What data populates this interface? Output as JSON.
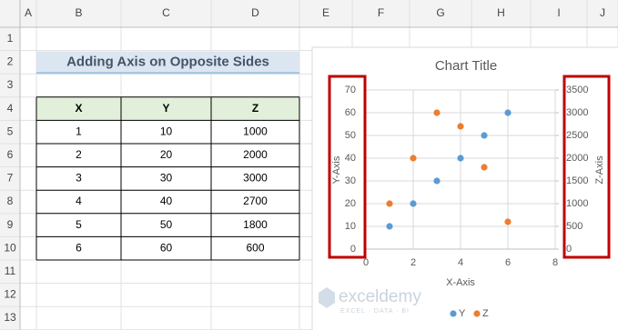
{
  "spreadsheet": {
    "columns": [
      "A",
      "B",
      "C",
      "D",
      "E",
      "F",
      "G",
      "H",
      "I",
      "J"
    ],
    "rows": [
      1,
      2,
      3,
      4,
      5,
      6,
      7,
      8,
      9,
      10,
      11,
      12,
      13
    ],
    "title": "Adding Axis on Opposite Sides",
    "table": {
      "header": [
        "X",
        "Y",
        "Z"
      ],
      "rows": [
        [
          1,
          10,
          1000
        ],
        [
          2,
          20,
          2000
        ],
        [
          3,
          30,
          3000
        ],
        [
          4,
          40,
          2700
        ],
        [
          5,
          50,
          1800
        ],
        [
          6,
          60,
          600
        ]
      ]
    }
  },
  "chart_data": {
    "type": "scatter",
    "title": "Chart Title",
    "x_label": "X-Axis",
    "y_label": "Y-Axis",
    "y2_label": "Z-Axis",
    "x": [
      1,
      2,
      3,
      4,
      5,
      6
    ],
    "series": [
      {
        "name": "Y",
        "color": "#5b9bd5",
        "values": [
          10,
          20,
          30,
          40,
          50,
          60
        ]
      },
      {
        "name": "Z",
        "color": "#ed7d31",
        "values": [
          1000,
          2000,
          3000,
          2700,
          1800,
          600
        ],
        "axis": "y2"
      }
    ],
    "xlim": [
      0,
      8
    ],
    "xticks": [
      0,
      2,
      4,
      6,
      8
    ],
    "ylim": [
      0,
      70
    ],
    "yticks": [
      0,
      10,
      20,
      30,
      40,
      50,
      60,
      70
    ],
    "y2lim": [
      0,
      3500
    ],
    "y2ticks": [
      0,
      500,
      1000,
      1500,
      2000,
      2500,
      3000,
      3500
    ],
    "grid": true,
    "legend": "bottom"
  },
  "watermark": {
    "name": "exceldemy",
    "tagline": "EXCEL · DATA · BI"
  }
}
